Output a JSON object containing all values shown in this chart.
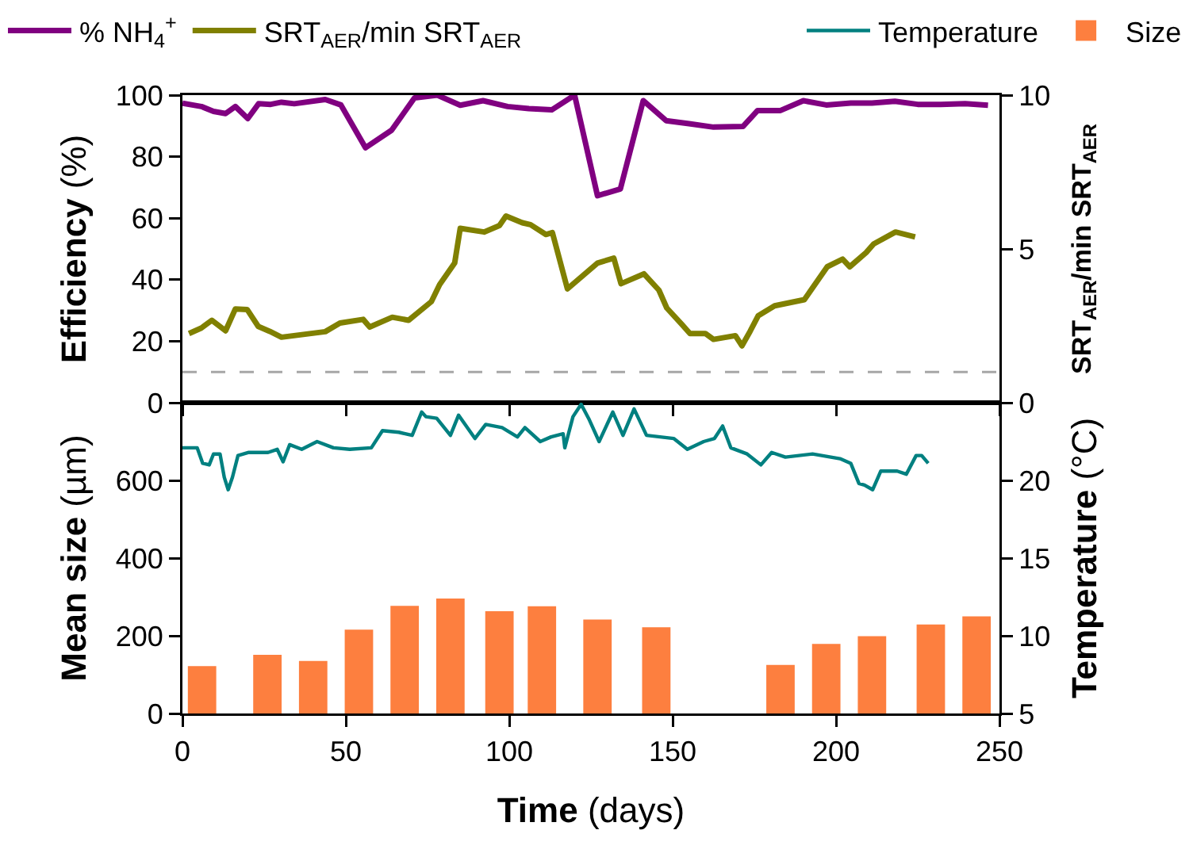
{
  "chart_data": [
    {
      "type": "line",
      "ylabel": "Efficiency (%)",
      "y2label": "SRT$_{AER}$/min SRT$_{AER}$",
      "xlim": [
        0,
        250
      ],
      "xticks": [
        0,
        50,
        100,
        150,
        200,
        250
      ],
      "ylim": [
        0,
        100
      ],
      "yticks": [
        0,
        20,
        40,
        60,
        80,
        100
      ],
      "y2lim": [
        0,
        10
      ],
      "y2ticks": [
        0,
        5,
        10
      ],
      "tick_labels": "y",
      "legend": "top left",
      "grid": false,
      "ref_lines": [
        {
          "axis": "y2",
          "value": 1,
          "color": "#a6a6a6",
          "line_style": "dashed"
        }
      ],
      "series": [
        {
          "name": "% NH$_{4}$$^{+}$",
          "color": "#800080",
          "x": [
            0,
            5.8,
            9.5,
            13.2,
            16.2,
            20,
            23.3,
            27,
            30.3,
            34.2,
            43.7,
            48.5,
            56,
            64,
            71,
            78,
            85,
            92,
            99.5,
            106,
            113,
            120,
            127,
            134,
            141,
            148,
            155,
            162.5,
            171.5,
            176,
            183,
            190,
            197,
            204.5,
            211,
            218,
            225,
            232,
            239.5,
            246.5
          ],
          "values": [
            97.4,
            96.3,
            94.7,
            94,
            96.3,
            92.4,
            97.2,
            97,
            97.7,
            97.2,
            98.6,
            96.8,
            82.9,
            88.6,
            99.1,
            100,
            96.7,
            98.2,
            96.3,
            95.6,
            95.2,
            100,
            67.3,
            69.5,
            98.2,
            91.7,
            90.7,
            89.6,
            89.8,
            95,
            95,
            98.2,
            96.8,
            97.4,
            97.4,
            98,
            97,
            97,
            97.2,
            96.7
          ]
        },
        {
          "name": "SRT$_{AER}$/min SRT$_{AER}$",
          "color": "#808000",
          "axis": "y2",
          "x": [
            2,
            5.8,
            9,
            13.2,
            16.2,
            19.8,
            23.2,
            26.7,
            30.3,
            43.7,
            48.2,
            55.3,
            57.3,
            64.2,
            69.2,
            76.2,
            78.7,
            83.3,
            85,
            92.3,
            97,
            99,
            104,
            106.5,
            111.2,
            113.2,
            117.8,
            127,
            132,
            134.2,
            141.2,
            145.8,
            148.2,
            152.8,
            155.3,
            160,
            162.5,
            169.2,
            171.2,
            173.7,
            176.2,
            181.2,
            190.3,
            197.3,
            202,
            204.2,
            209.2,
            211.5,
            218.2,
            224.2
          ],
          "values": [
            2.25,
            2.43,
            2.68,
            2.34,
            3.05,
            3.03,
            2.48,
            2.32,
            2.13,
            2.31,
            2.59,
            2.71,
            2.46,
            2.78,
            2.68,
            3.29,
            3.84,
            4.54,
            5.67,
            5.55,
            5.76,
            6.07,
            5.85,
            5.79,
            5.47,
            5.53,
            3.7,
            4.54,
            4.7,
            3.87,
            4.19,
            3.66,
            3.08,
            2.55,
            2.25,
            2.25,
            2.06,
            2.18,
            1.85,
            2.32,
            2.83,
            3.15,
            3.35,
            4.42,
            4.67,
            4.42,
            4.88,
            5.16,
            5.55,
            5.39
          ]
        }
      ]
    },
    {
      "type": "bar",
      "xlabel": "Time (days)",
      "ylabel": "Mean size (µm)",
      "y2label": "Temperature (°C)",
      "xlim": [
        0,
        250
      ],
      "xticks": [
        0,
        50,
        100,
        150,
        200,
        250
      ],
      "ylim": [
        0,
        800
      ],
      "yticks": [
        0,
        200,
        400,
        600
      ],
      "y2lim": [
        5,
        25
      ],
      "y2ticks": [
        5,
        10,
        15,
        20
      ],
      "legend": "top right",
      "grid": false,
      "series": [
        {
          "name": "Temperature",
          "type": "line",
          "color": "#008080",
          "axis": "y2",
          "x": [
            0,
            4.5,
            6.2,
            8.2,
            9.5,
            11.5,
            12.8,
            14,
            15.3,
            17,
            20.3,
            26.2,
            29,
            30.8,
            32.8,
            36.5,
            41.2,
            46.2,
            51.2,
            57.8,
            61.2,
            66.2,
            70.3,
            73.2,
            74.5,
            77.8,
            82,
            84.5,
            89.5,
            92.8,
            97.8,
            102.5,
            104.8,
            109.5,
            112.8,
            116.5,
            117,
            119.5,
            122,
            124.5,
            127.5,
            131.7,
            134.8,
            138.2,
            142,
            150.3,
            154.5,
            159.5,
            162.8,
            165.3,
            167.8,
            172.8,
            177,
            180.3,
            184.5,
            192.8,
            201.2,
            204.5,
            207,
            208.7,
            211.2,
            213.7,
            218.7,
            221.5,
            224.5,
            226.2,
            228.2
          ],
          "values": [
            22.1,
            22.1,
            21.1,
            21,
            21.7,
            21.7,
            20.2,
            19.4,
            20.2,
            21.6,
            21.8,
            21.8,
            22,
            21.2,
            22.3,
            22,
            22.5,
            22.1,
            22,
            22.1,
            23.2,
            23.1,
            22.9,
            24.4,
            24.1,
            24,
            22.9,
            24.2,
            22.7,
            23.6,
            23.4,
            22.8,
            23.4,
            22.5,
            22.8,
            23,
            22.1,
            24.1,
            24.9,
            23.9,
            22.5,
            24.4,
            22.9,
            24.6,
            22.9,
            22.7,
            22,
            22.5,
            22.7,
            23.5,
            22.1,
            21.7,
            21,
            21.8,
            21.5,
            21.7,
            21.4,
            21.1,
            19.8,
            19.7,
            19.4,
            20.6,
            20.6,
            20.4,
            21.6,
            21.6,
            21.1
          ]
        },
        {
          "name": "Size",
          "color": "#fd7f3f",
          "x": [
            6,
            26,
            40,
            54,
            68,
            82,
            97,
            110,
            127,
            145,
            183,
            197,
            211,
            229,
            243
          ],
          "values": [
            120,
            149,
            133,
            214,
            275,
            294,
            261,
            274,
            240,
            220,
            123,
            177,
            197,
            227,
            248
          ]
        }
      ]
    }
  ]
}
